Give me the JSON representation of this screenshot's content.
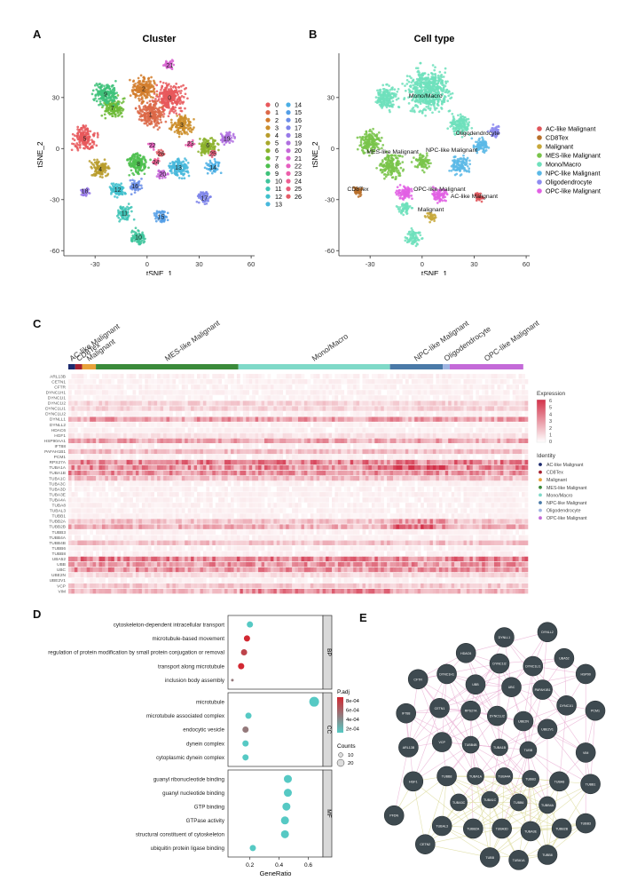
{
  "panel_labels": {
    "a": "A",
    "b": "B",
    "c": "C",
    "d": "D",
    "e": "E"
  },
  "colors": {
    "ac": "#e0555a",
    "cd8": "#b8702a",
    "mal": "#c7a83a",
    "mes": "#79c44a",
    "mono": "#6ee0bc",
    "npc": "#5ab8e6",
    "oligo": "#8e8cf0",
    "opc": "#e260e4",
    "bar_ac": "#1c2a6e",
    "bar_cd8": "#a52030",
    "bar_mal": "#e8a23a",
    "bar_mes": "#3a8a3a",
    "bar_mono": "#7fd9c8",
    "bar_npc": "#4a7aa8",
    "bar_oligo": "#9fb4e2",
    "bar_opc": "#c46ad8",
    "heat_lo": "#ffffff",
    "heat_hi": "#d3324a",
    "node": "#3e4a50",
    "edge_pink": "#e6a2cc",
    "edge_yellow": "#d6d48a"
  },
  "chart_data": [
    {
      "type": "scatter",
      "id": "A",
      "title": "Cluster",
      "xlabel": "tSNE_1",
      "ylabel": "tSNE_2",
      "xlim": [
        -48,
        62
      ],
      "ylim": [
        -63,
        56
      ],
      "xticks": [
        -30,
        0,
        30,
        60
      ],
      "yticks": [
        -60,
        -30,
        0,
        30
      ],
      "legend_left": [
        "0",
        "1",
        "2",
        "3",
        "4",
        "5",
        "6",
        "7",
        "8",
        "9",
        "10",
        "11",
        "12",
        "13"
      ],
      "legend_right": [
        "14",
        "15",
        "16",
        "17",
        "18",
        "19",
        "20",
        "21",
        "22",
        "23",
        "24",
        "25",
        "26"
      ],
      "legend_colors": [
        "#e8585c",
        "#dc6848",
        "#d27c2c",
        "#cc8e2a",
        "#b89c2c",
        "#a8a82c",
        "#8cb22c",
        "#6cba36",
        "#4cc04e",
        "#3ec27a",
        "#3ec49c",
        "#3ec4b6",
        "#40c0cc",
        "#48b8dc",
        "#4aaee4",
        "#529ee6",
        "#6a8ee8",
        "#7c84ea",
        "#987ae8",
        "#b070e0",
        "#c668d8",
        "#d862d0",
        "#e65ec0",
        "#ec5eaa",
        "#ee5e92",
        "#ea5c7a",
        "#e45c66"
      ],
      "clusters": [
        {
          "label": "0",
          "x": 13,
          "y": 30,
          "r": 11,
          "c": "#e8585c"
        },
        {
          "label": "1",
          "x": 2,
          "y": 20,
          "r": 10,
          "c": "#dc6848"
        },
        {
          "label": "2",
          "x": -2,
          "y": 35,
          "r": 9,
          "c": "#d27c2c"
        },
        {
          "label": "3",
          "x": 20,
          "y": 14,
          "r": 8,
          "c": "#cc8e2a"
        },
        {
          "label": "4",
          "x": -27,
          "y": -12,
          "r": 7,
          "c": "#b89c2c"
        },
        {
          "label": "5",
          "x": -36,
          "y": 6,
          "r": 9,
          "c": "#e8585c"
        },
        {
          "label": "6",
          "x": 35,
          "y": 2,
          "r": 7,
          "c": "#8cb22c"
        },
        {
          "label": "7",
          "x": -20,
          "y": 24,
          "r": 8,
          "c": "#6cba36"
        },
        {
          "label": "8",
          "x": -5,
          "y": -9,
          "r": 8,
          "c": "#4cc04e"
        },
        {
          "label": "9",
          "x": -24,
          "y": 32,
          "r": 9,
          "c": "#3ec27a"
        },
        {
          "label": "10",
          "x": -5,
          "y": -52,
          "r": 6,
          "c": "#3ec49c"
        },
        {
          "label": "11",
          "x": -13,
          "y": -38,
          "r": 6,
          "c": "#3ec4b6"
        },
        {
          "label": "12",
          "x": -17,
          "y": -24,
          "r": 6,
          "c": "#40c0cc"
        },
        {
          "label": "13",
          "x": 18,
          "y": -11,
          "r": 8,
          "c": "#48b8dc"
        },
        {
          "label": "14",
          "x": 38,
          "y": -11,
          "r": 5,
          "c": "#4aaee4"
        },
        {
          "label": "15",
          "x": 8,
          "y": -40,
          "r": 5,
          "c": "#529ee6"
        },
        {
          "label": "16",
          "x": -7,
          "y": -22,
          "r": 5,
          "c": "#6a8ee8"
        },
        {
          "label": "17",
          "x": 33,
          "y": -29,
          "r": 5,
          "c": "#7c84ea"
        },
        {
          "label": "18",
          "x": -36,
          "y": -25,
          "r": 4,
          "c": "#987ae8"
        },
        {
          "label": "19",
          "x": 46,
          "y": 6,
          "r": 5,
          "c": "#b070e0"
        },
        {
          "label": "20",
          "x": 9,
          "y": -15,
          "r": 4,
          "c": "#c668d8"
        },
        {
          "label": "21",
          "x": 13,
          "y": 49,
          "r": 4,
          "c": "#d862d0"
        },
        {
          "label": "22",
          "x": 3,
          "y": 2,
          "r": 3,
          "c": "#e65ec0"
        },
        {
          "label": "23",
          "x": 25,
          "y": 3,
          "r": 3,
          "c": "#ec5eaa"
        },
        {
          "label": "24",
          "x": 5,
          "y": -8,
          "r": 3,
          "c": "#ee5e92"
        },
        {
          "label": "25",
          "x": 38,
          "y": -3,
          "r": 3,
          "c": "#ea5c7a"
        },
        {
          "label": "26",
          "x": 8,
          "y": -3,
          "r": 3,
          "c": "#e45c66"
        }
      ]
    },
    {
      "type": "scatter",
      "id": "B",
      "title": "Cell type",
      "xlabel": "tSNE_1",
      "ylabel": "tSNE_2",
      "xlim": [
        -48,
        62
      ],
      "ylim": [
        -63,
        56
      ],
      "xticks": [
        -30,
        0,
        30,
        60
      ],
      "yticks": [
        -60,
        -30,
        0,
        30
      ],
      "legend": [
        "AC-like Malignant",
        "CD8Tex",
        "Malignant",
        "MES-like Malignant",
        "Mono/Macro",
        "NPC-like Malignant",
        "Oligodendrocyte",
        "OPC-like Malignant"
      ],
      "legend_colors": [
        "#e0555a",
        "#b8702a",
        "#c7a83a",
        "#79c44a",
        "#6ee0bc",
        "#5ab8e6",
        "#8e8cf0",
        "#e260e4"
      ],
      "annotations": [
        {
          "text": "Mono/Macro",
          "x": 2,
          "y": 30
        },
        {
          "text": "Oligodendrocyte",
          "x": 32,
          "y": 8
        },
        {
          "text": "MES-like Malignant",
          "x": -17,
          "y": -3
        },
        {
          "text": "NPC-like Malignant",
          "x": 17,
          "y": -2
        },
        {
          "text": "CD8Tex",
          "x": -37,
          "y": -25
        },
        {
          "text": "OPC-like Malignant",
          "x": 10,
          "y": -25
        },
        {
          "text": "AC-like Malignant",
          "x": 30,
          "y": -29
        },
        {
          "text": "Malignant",
          "x": 5,
          "y": -37
        }
      ],
      "clusters": [
        {
          "x": 4,
          "y": 34,
          "r": 16,
          "c": "#6ee0bc"
        },
        {
          "x": -21,
          "y": 30,
          "r": 9,
          "c": "#6ee0bc"
        },
        {
          "x": 22,
          "y": 14,
          "r": 8,
          "c": "#6ee0bc"
        },
        {
          "x": -5,
          "y": -52,
          "r": 6,
          "c": "#6ee0bc"
        },
        {
          "x": -30,
          "y": 4,
          "r": 9,
          "c": "#79c44a"
        },
        {
          "x": -18,
          "y": -10,
          "r": 9,
          "c": "#79c44a"
        },
        {
          "x": 0,
          "y": -8,
          "r": 6,
          "c": "#79c44a"
        },
        {
          "x": -10,
          "y": -35,
          "r": 5,
          "c": "#6ee0bc"
        },
        {
          "x": 22,
          "y": -10,
          "r": 7,
          "c": "#5ab8e6"
        },
        {
          "x": 34,
          "y": 2,
          "r": 6,
          "c": "#5ab8e6"
        },
        {
          "x": 42,
          "y": 10,
          "r": 5,
          "c": "#8e8cf0"
        },
        {
          "x": -37,
          "y": -25,
          "r": 4,
          "c": "#b8702a"
        },
        {
          "x": -10,
          "y": -26,
          "r": 6,
          "c": "#e260e4"
        },
        {
          "x": 10,
          "y": -27,
          "r": 6,
          "c": "#e260e4"
        },
        {
          "x": 33,
          "y": -28,
          "r": 4,
          "c": "#e0555a"
        },
        {
          "x": 5,
          "y": -40,
          "r": 4,
          "c": "#c7a83a"
        }
      ]
    },
    {
      "type": "heatmap",
      "id": "C",
      "groups": [
        {
          "name": "AC-like Malignant",
          "frac": 0.015
        },
        {
          "name": "CD8Tex",
          "frac": 0.015
        },
        {
          "name": "Malignant",
          "frac": 0.03
        },
        {
          "name": "MES-like Malignant",
          "frac": 0.31
        },
        {
          "name": "Mono/Macro",
          "frac": 0.33
        },
        {
          "name": "NPC-like Malignant",
          "frac": 0.115
        },
        {
          "name": "Oligodendrocyte",
          "frac": 0.015
        },
        {
          "name": "OPC-like Malignant",
          "frac": 0.16
        }
      ],
      "genes": [
        "ARL13B",
        "CETN1",
        "CFTR",
        "DYNC1H1",
        "DYNC1I1",
        "DYNC1I2",
        "DYNC1LI1",
        "DYNC1LI2",
        "DYNLL1",
        "DYNLL2",
        "HDAC6",
        "HGF1",
        "HSP90AA1",
        "IFT88",
        "PAFAH1B1",
        "PCM1",
        "RPS27A",
        "TUBA1A",
        "TUBA1B",
        "TUBA1C",
        "TUBA3C",
        "TUBA3D",
        "TUBA3E",
        "TUBA4A",
        "TUBA8",
        "TUBAL3",
        "TUBB1",
        "TUBB2A",
        "TUBB2B",
        "TUBB3",
        "TUBB4A",
        "TUBB4B",
        "TUBB6",
        "TUBB8",
        "UBA52",
        "UBB",
        "UBC",
        "UBE2N",
        "UBE2V1",
        "VCP",
        "VIM"
      ],
      "legend_title": "Expression",
      "legend_ticks": [
        "6",
        "5",
        "4",
        "3",
        "2",
        "1",
        "0"
      ],
      "identity_title": "Identity",
      "identity_items": [
        "AC-like Malignant",
        "CD8Tex",
        "Malignant",
        "MES-like Malignant",
        "Mono/Macro",
        "NPC-like Malignant",
        "Oligodendrocyte",
        "OPC-like Malignant"
      ]
    },
    {
      "type": "scatter",
      "id": "D",
      "xlabel": "GeneRatio",
      "xlim": [
        0.05,
        0.7
      ],
      "xticks": [
        "0.2",
        "0.4",
        "0.6"
      ],
      "facets": [
        {
          "name": "BP",
          "terms": [
            {
              "label": "cytoskeleton-dependent intracellular transport",
              "ratio": 0.2,
              "size": 1,
              "p": 0.0002
            },
            {
              "label": "microtubule-based movement",
              "ratio": 0.18,
              "size": 1,
              "p": 0.0008
            },
            {
              "label": "regulation of protein modification by small protein conjugation or removal",
              "ratio": 0.16,
              "size": 1,
              "p": 0.0007
            },
            {
              "label": "transport along microtubule",
              "ratio": 0.14,
              "size": 1,
              "p": 0.0008
            },
            {
              "label": "inclusion body assembly",
              "ratio": 0.08,
              "size": 0,
              "p": 0.0005
            }
          ]
        },
        {
          "name": "CC",
          "terms": [
            {
              "label": "microtubule",
              "ratio": 0.64,
              "size": 3,
              "p": 0.0002
            },
            {
              "label": "microtubule associated complex",
              "ratio": 0.19,
              "size": 1,
              "p": 0.0002
            },
            {
              "label": "endocytic vesicle",
              "ratio": 0.17,
              "size": 1,
              "p": 0.0005
            },
            {
              "label": "dynein complex",
              "ratio": 0.17,
              "size": 1,
              "p": 0.0002
            },
            {
              "label": "cytoplasmic dynein complex",
              "ratio": 0.17,
              "size": 1,
              "p": 0.0002
            }
          ]
        },
        {
          "name": "MF",
          "terms": [
            {
              "label": "guanyl ribonucleotide binding",
              "ratio": 0.46,
              "size": 2,
              "p": 0.0002
            },
            {
              "label": "guanyl nucleotide binding",
              "ratio": 0.46,
              "size": 2,
              "p": 0.0002
            },
            {
              "label": "GTP binding",
              "ratio": 0.45,
              "size": 2,
              "p": 0.0002
            },
            {
              "label": "GTPase activity",
              "ratio": 0.44,
              "size": 2,
              "p": 0.0002
            },
            {
              "label": "structural constituent of cytoskeleton",
              "ratio": 0.44,
              "size": 2,
              "p": 0.0002
            },
            {
              "label": "ubiquitin protein ligase binding",
              "ratio": 0.22,
              "size": 1,
              "p": 0.0002
            }
          ]
        }
      ],
      "padj_title": "P.adj",
      "padj_ticks": [
        "8e-04",
        "6e-04",
        "4e-04",
        "2e-04"
      ],
      "counts_title": "Counts",
      "counts_ticks": [
        "10",
        "20"
      ]
    },
    {
      "type": "network",
      "id": "E",
      "nodes": [
        {
          "label": "DYNLL1",
          "x": 0.52,
          "y": 0.08
        },
        {
          "label": "DYNLL2",
          "x": 0.7,
          "y": 0.06
        },
        {
          "label": "HDAC6",
          "x": 0.36,
          "y": 0.14
        },
        {
          "label": "DYNC1I2",
          "x": 0.5,
          "y": 0.18
        },
        {
          "label": "DYNC1LI1",
          "x": 0.64,
          "y": 0.19
        },
        {
          "label": "UBA52",
          "x": 0.77,
          "y": 0.16
        },
        {
          "label": "HSP90",
          "x": 0.86,
          "y": 0.22
        },
        {
          "label": "CFTR",
          "x": 0.16,
          "y": 0.24
        },
        {
          "label": "DYNC1H1",
          "x": 0.28,
          "y": 0.22
        },
        {
          "label": "UBB",
          "x": 0.4,
          "y": 0.26
        },
        {
          "label": "UBC",
          "x": 0.55,
          "y": 0.27
        },
        {
          "label": "PAFAH1B1",
          "x": 0.68,
          "y": 0.28
        },
        {
          "label": "DYNC1I1",
          "x": 0.78,
          "y": 0.34
        },
        {
          "label": "PCM1",
          "x": 0.9,
          "y": 0.36
        },
        {
          "label": "IFT88",
          "x": 0.11,
          "y": 0.37
        },
        {
          "label": "CETN1",
          "x": 0.25,
          "y": 0.35
        },
        {
          "label": "RPS27A",
          "x": 0.38,
          "y": 0.36
        },
        {
          "label": "DYNC1LI2",
          "x": 0.49,
          "y": 0.38
        },
        {
          "label": "UBE2N",
          "x": 0.6,
          "y": 0.4
        },
        {
          "label": "UBE2V1",
          "x": 0.7,
          "y": 0.43
        },
        {
          "label": "ARL13B",
          "x": 0.12,
          "y": 0.5
        },
        {
          "label": "VCP",
          "x": 0.26,
          "y": 0.48
        },
        {
          "label": "TUBB4B",
          "x": 0.38,
          "y": 0.49
        },
        {
          "label": "TUBA1B",
          "x": 0.5,
          "y": 0.5
        },
        {
          "label": "TUBB",
          "x": 0.62,
          "y": 0.51
        },
        {
          "label": "VIM",
          "x": 0.86,
          "y": 0.52
        },
        {
          "label": "HGF1",
          "x": 0.14,
          "y": 0.63
        },
        {
          "label": "TUBB8",
          "x": 0.28,
          "y": 0.61
        },
        {
          "label": "TUBA1A",
          "x": 0.4,
          "y": 0.61
        },
        {
          "label": "TUBA4A",
          "x": 0.52,
          "y": 0.61
        },
        {
          "label": "TUBB3",
          "x": 0.63,
          "y": 0.62
        },
        {
          "label": "TUBA8",
          "x": 0.75,
          "y": 0.63
        },
        {
          "label": "TUBB1",
          "x": 0.88,
          "y": 0.64
        },
        {
          "label": "TUBA3C",
          "x": 0.33,
          "y": 0.71
        },
        {
          "label": "TUBA1C",
          "x": 0.46,
          "y": 0.7
        },
        {
          "label": "TUBB6",
          "x": 0.58,
          "y": 0.71
        },
        {
          "label": "TUBB4A",
          "x": 0.7,
          "y": 0.72
        },
        {
          "label": "TUBAL3",
          "x": 0.26,
          "y": 0.8
        },
        {
          "label": "TUBB2A",
          "x": 0.39,
          "y": 0.81
        },
        {
          "label": "TUBA3D",
          "x": 0.51,
          "y": 0.81
        },
        {
          "label": "TUBA3E",
          "x": 0.63,
          "y": 0.82
        },
        {
          "label": "TUBB2B",
          "x": 0.76,
          "y": 0.81
        },
        {
          "label": "TUBB3",
          "x": 0.86,
          "y": 0.79
        },
        {
          "label": "PFDN",
          "x": 0.06,
          "y": 0.76
        },
        {
          "label": "CETN2",
          "x": 0.19,
          "y": 0.87
        },
        {
          "label": "TUBB",
          "x": 0.46,
          "y": 0.92
        },
        {
          "label": "TUBA1A",
          "x": 0.58,
          "y": 0.93
        },
        {
          "label": "TUBB8",
          "x": 0.7,
          "y": 0.91
        }
      ]
    }
  ]
}
